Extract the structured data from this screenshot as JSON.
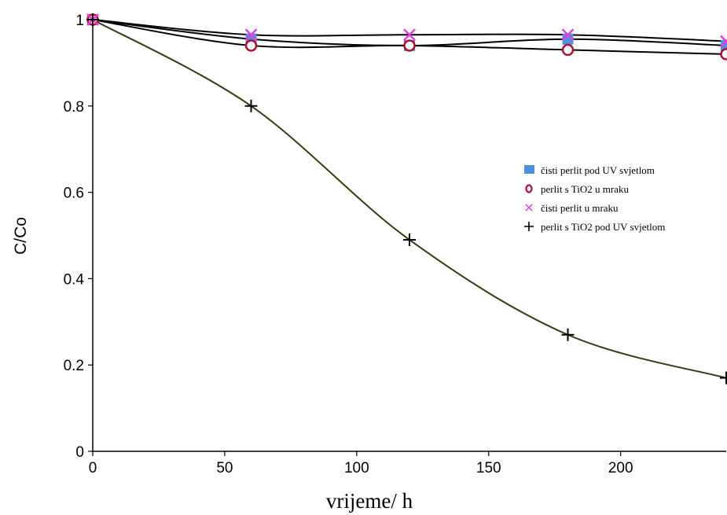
{
  "chart_data": {
    "type": "line",
    "title": "",
    "xlabel": "vrijeme/ h",
    "ylabel": "C/Co",
    "xlim": [
      0,
      240
    ],
    "ylim": [
      0,
      1
    ],
    "xticks": [
      0,
      50,
      100,
      150,
      200
    ],
    "yticks": [
      0,
      0.2,
      0.4,
      0.6,
      0.8,
      1
    ],
    "ytick_labels": [
      "0",
      "0.2",
      "0.4",
      "0.6",
      "0.8",
      "1"
    ],
    "grid": false,
    "legend_position": "right-middle",
    "series": [
      {
        "name": "čisti perlit pod UV svjetlom",
        "marker": "filled-square",
        "color": "#4f8fe0",
        "line_color": "#000000",
        "x": [
          0,
          60,
          120,
          180,
          240
        ],
        "y": [
          1.0,
          0.955,
          0.94,
          0.955,
          0.94
        ]
      },
      {
        "name": "perlit s TiO2 u mraku",
        "marker": "open-circle",
        "color": "#b0102a",
        "line_color": "#000000",
        "x": [
          0,
          60,
          120,
          180,
          240
        ],
        "y": [
          1.0,
          0.94,
          0.94,
          0.93,
          0.92
        ]
      },
      {
        "name": "čisti perlit u mraku",
        "marker": "x",
        "color": "#e040e0",
        "line_color": "#000000",
        "x": [
          0,
          60,
          120,
          180,
          240
        ],
        "y": [
          1.0,
          0.965,
          0.965,
          0.965,
          0.95
        ]
      },
      {
        "name": "perlit s TiO2 pod UV svjetlom",
        "marker": "plus",
        "color": "#000000",
        "line_color": "#3a3a10",
        "x": [
          0,
          60,
          120,
          180,
          240
        ],
        "y": [
          1.0,
          0.8,
          0.49,
          0.27,
          0.17
        ]
      }
    ]
  }
}
